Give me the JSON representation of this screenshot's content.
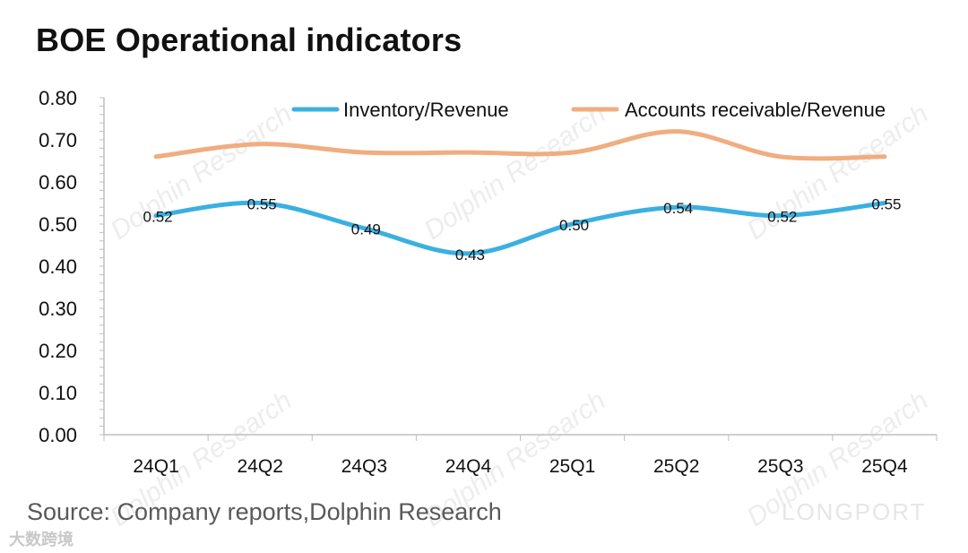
{
  "title": "BOE Operational indicators",
  "source": "Source: Company reports,Dolphin Research",
  "watermarks": {
    "text": "Dolphin Research",
    "logo": "LONGPORT",
    "bottom_badge": "大数跨境"
  },
  "colors": {
    "inventory": "#3bb0e0",
    "receivables": "#f0ad80",
    "axis": "#bfbfbf",
    "text": "#111111"
  },
  "chart_data": {
    "type": "line",
    "title": "BOE Operational indicators",
    "categories": [
      "24Q1",
      "24Q2",
      "24Q3",
      "24Q4",
      "25Q1",
      "25Q2",
      "25Q3",
      "25Q4"
    ],
    "series": [
      {
        "name": "Inventory/Revenue",
        "values": [
          0.52,
          0.55,
          0.49,
          0.43,
          0.5,
          0.54,
          0.52,
          0.55
        ],
        "labels": [
          "0.52",
          "0.55",
          "0.49",
          "0.43",
          "0.50",
          "0.54",
          "0.52",
          "0.55"
        ],
        "color": "#3bb0e0"
      },
      {
        "name": "Accounts receivable/Revenue",
        "values": [
          0.66,
          0.69,
          0.67,
          0.67,
          0.67,
          0.72,
          0.66,
          0.66
        ],
        "color": "#f0ad80"
      }
    ],
    "ylim": [
      0,
      0.8
    ],
    "yticks": [
      "0.00",
      "0.10",
      "0.20",
      "0.30",
      "0.40",
      "0.50",
      "0.60",
      "0.70",
      "0.80"
    ],
    "xlabel": "",
    "ylabel": "",
    "legend": "top-right",
    "grid": false
  }
}
